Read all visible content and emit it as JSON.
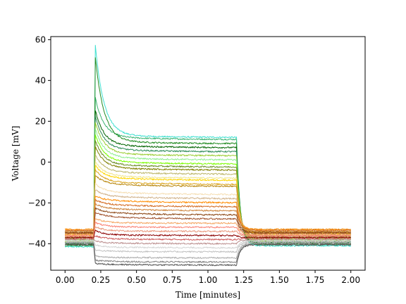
{
  "chart_data": {
    "type": "line",
    "title": "",
    "xlabel": "Time [minutes]",
    "ylabel": "Voltage [mV]",
    "xlim": [
      -0.1,
      2.1
    ],
    "ylim": [
      -53,
      61.5
    ],
    "xticks": [
      0.0,
      0.25,
      0.5,
      0.75,
      1.0,
      1.25,
      1.5,
      1.75,
      2.0
    ],
    "xtick_labels": [
      "0.00",
      "0.25",
      "0.50",
      "0.75",
      "1.00",
      "1.25",
      "1.50",
      "1.75",
      "2.00"
    ],
    "yticks": [
      -40,
      -20,
      0,
      20,
      40,
      60
    ],
    "ytick_labels": [
      "−40",
      "−20",
      "0",
      "20",
      "40",
      "60"
    ],
    "grid": false,
    "legend": "none",
    "stimulus": {
      "on": 0.2,
      "off": 1.2,
      "end": 2.0
    },
    "series": [
      {
        "color": "#40e0d0",
        "rest": -41.5,
        "plateau": 12.0,
        "peak": 56.0,
        "post": -41.0
      },
      {
        "color": "#3cb371",
        "rest": -41.0,
        "plateau": 11.0,
        "peak": 30.0,
        "post": -40.5
      },
      {
        "color": "#228b22",
        "rest": -40.5,
        "plateau": 9.0,
        "peak": 50.0,
        "post": -40.0
      },
      {
        "color": "#006400",
        "rest": -40.0,
        "plateau": 7.0,
        "peak": 24.0,
        "post": -39.5
      },
      {
        "color": "#2e8b57",
        "rest": -39.5,
        "plateau": 5.0,
        "peak": 21.0,
        "post": -39.0
      },
      {
        "color": "#9acd32",
        "rest": -39.0,
        "plateau": 3.0,
        "peak": 18.0,
        "post": -38.5
      },
      {
        "color": "#90ee90",
        "rest": -38.5,
        "plateau": 1.0,
        "peak": 15.0,
        "post": -38.0
      },
      {
        "color": "#7cfc00",
        "rest": -38.0,
        "plateau": -1.0,
        "peak": 12.0,
        "post": -37.5
      },
      {
        "color": "#6b8e23",
        "rest": -37.5,
        "plateau": -2.5,
        "peak": 9.0,
        "post": -37.0
      },
      {
        "color": "#808000",
        "rest": -37.0,
        "plateau": -4.0,
        "peak": 6.0,
        "post": -36.5
      },
      {
        "color": "#bdb76b",
        "rest": -36.5,
        "plateau": -6.0,
        "peak": 2.0,
        "post": -36.0
      },
      {
        "color": "#f0e68c",
        "rest": -36.0,
        "plateau": -8.0,
        "peak": -1.0,
        "post": -35.5
      },
      {
        "color": "#ffd700",
        "rest": -35.5,
        "plateau": -9.0,
        "peak": -3.0,
        "post": -35.0
      },
      {
        "color": "#daa520",
        "rest": -35.0,
        "plateau": -11.0,
        "peak": -5.0,
        "post": -34.5
      },
      {
        "color": "#b8860b",
        "rest": -34.5,
        "plateau": -12.0,
        "peak": -8.0,
        "post": -34.0
      },
      {
        "color": "#f5deb3",
        "rest": -34.0,
        "plateau": -16.0,
        "peak": -12.0,
        "post": -33.5
      },
      {
        "color": "#d2b48c",
        "rest": -33.5,
        "plateau": -18.0,
        "peak": -15.0,
        "post": -33.0
      },
      {
        "color": "#ff8c00",
        "rest": -33.0,
        "plateau": -20.0,
        "peak": -18.0,
        "post": -33.0
      },
      {
        "color": "#d2691e",
        "rest": -33.5,
        "plateau": -22.0,
        "peak": -20.0,
        "post": -33.5
      },
      {
        "color": "#cd853f",
        "rest": -34.0,
        "plateau": -24.0,
        "peak": -22.0,
        "post": -34.0
      },
      {
        "color": "#8b4513",
        "rest": -34.5,
        "plateau": -26.0,
        "peak": -24.0,
        "post": -34.5
      },
      {
        "color": "#a0522d",
        "rest": -35.0,
        "plateau": -28.0,
        "peak": -26.0,
        "post": -35.0
      },
      {
        "color": "#f4a460",
        "rest": -35.5,
        "plateau": -30.0,
        "peak": -28.0,
        "post": -35.5
      },
      {
        "color": "#fa8072",
        "rest": -36.0,
        "plateau": -32.0,
        "peak": -30.0,
        "post": -36.0
      },
      {
        "color": "#e9967a",
        "rest": -36.5,
        "plateau": -34.0,
        "peak": -32.0,
        "post": -36.5
      },
      {
        "color": "#8b0000",
        "rest": -37.0,
        "plateau": -36.0,
        "peak": -34.0,
        "post": -37.0
      },
      {
        "color": "#cd5c5c",
        "rest": -37.5,
        "plateau": -38.0,
        "peak": -36.5,
        "post": -37.5
      },
      {
        "color": "#bc8f8f",
        "rest": -38.0,
        "plateau": -40.0,
        "peak": -39.0,
        "post": -38.0
      },
      {
        "color": "#d3d3d3",
        "rest": -38.5,
        "plateau": -42.0,
        "peak": -41.0,
        "post": -38.5
      },
      {
        "color": "#c0c0c0",
        "rest": -39.0,
        "plateau": -44.0,
        "peak": -43.5,
        "post": -39.0
      },
      {
        "color": "#a9a9a9",
        "rest": -39.5,
        "plateau": -47.0,
        "peak": -46.5,
        "post": -39.5
      },
      {
        "color": "#808080",
        "rest": -40.0,
        "plateau": -49.0,
        "peak": -48.5,
        "post": -40.0
      },
      {
        "color": "#555555",
        "rest": -40.5,
        "plateau": -50.5,
        "peak": -50.0,
        "post": -40.5
      }
    ]
  }
}
